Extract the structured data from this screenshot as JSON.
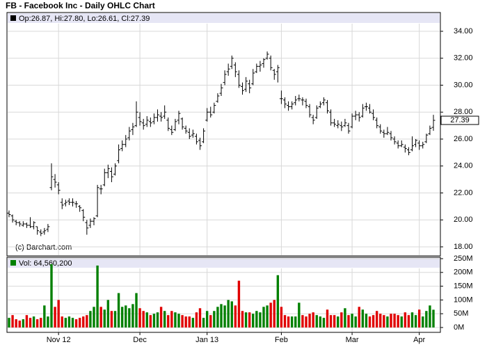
{
  "chart_data": {
    "type": "ohlc",
    "title": "FB - Facebook Inc - Daily OHLC Chart",
    "legend_label": "Op:26.87, Hi:27.80, Lo:26.61, Cl:27.39",
    "copyright": "(c) Barchart.com",
    "last_price_label": "27.39",
    "bar_color": "#000000",
    "up_color": "#008000",
    "down_color": "#e00000",
    "grid": true,
    "categories": [
      null,
      null,
      null,
      null,
      null,
      null,
      null,
      null,
      null,
      null,
      null,
      null,
      null,
      null,
      "Nov 12",
      null,
      null,
      null,
      null,
      null,
      null,
      null,
      null,
      null,
      null,
      null,
      null,
      null,
      null,
      null,
      null,
      null,
      null,
      null,
      null,
      null,
      null,
      "Dec",
      null,
      null,
      null,
      null,
      null,
      null,
      null,
      null,
      null,
      null,
      null,
      null,
      null,
      null,
      null,
      null,
      null,
      null,
      "Jan 13",
      null,
      null,
      null,
      null,
      null,
      null,
      null,
      null,
      null,
      null,
      null,
      null,
      null,
      null,
      null,
      null,
      null,
      null,
      null,
      null,
      "Feb",
      null,
      null,
      null,
      null,
      null,
      null,
      null,
      null,
      null,
      null,
      null,
      null,
      null,
      null,
      null,
      null,
      null,
      null,
      null,
      "Mar",
      null,
      null,
      null,
      null,
      null,
      null,
      null,
      null,
      null,
      null,
      null,
      null,
      null,
      null,
      null,
      null,
      null,
      null,
      "Apr",
      null,
      null,
      null,
      null
    ],
    "ohlc": [
      [
        20.5,
        20.7,
        20.2,
        20.4
      ],
      [
        20.3,
        20.4,
        19.8,
        20.0
      ],
      [
        19.9,
        20.0,
        19.6,
        19.8
      ],
      [
        19.8,
        19.9,
        19.5,
        19.7
      ],
      [
        19.6,
        19.9,
        19.5,
        19.7
      ],
      [
        19.7,
        19.8,
        19.4,
        19.6
      ],
      [
        19.6,
        20.2,
        19.4,
        19.5
      ],
      [
        19.5,
        19.9,
        19.3,
        19.8
      ],
      [
        19.5,
        19.5,
        18.9,
        19.2
      ],
      [
        19.1,
        19.3,
        18.8,
        19.0
      ],
      [
        19.1,
        19.4,
        18.9,
        19.2
      ],
      [
        19.3,
        19.7,
        19.1,
        19.5
      ],
      [
        22.4,
        24.2,
        22.2,
        23.2
      ],
      [
        23.0,
        23.4,
        22.4,
        22.8
      ],
      [
        22.6,
        22.8,
        21.9,
        22.2
      ],
      [
        21.3,
        21.6,
        20.8,
        21.1
      ],
      [
        21.2,
        21.5,
        21.0,
        21.3
      ],
      [
        21.4,
        21.6,
        21.1,
        21.3
      ],
      [
        21.3,
        21.6,
        21.0,
        21.3
      ],
      [
        21.2,
        21.4,
        20.9,
        21.2
      ],
      [
        21.0,
        21.1,
        20.6,
        20.9
      ],
      [
        20.7,
        20.8,
        19.9,
        20.2
      ],
      [
        19.8,
        20.0,
        18.9,
        19.4
      ],
      [
        19.6,
        20.1,
        19.4,
        19.9
      ],
      [
        19.9,
        20.2,
        19.6,
        20.1
      ],
      [
        20.3,
        22.6,
        20.2,
        22.4
      ],
      [
        22.3,
        22.6,
        21.9,
        22.3
      ],
      [
        22.6,
        23.8,
        22.5,
        23.5
      ],
      [
        23.5,
        24.1,
        23.1,
        23.8
      ],
      [
        23.6,
        23.9,
        22.8,
        23.2
      ],
      [
        23.4,
        24.2,
        23.3,
        24.0
      ],
      [
        24.4,
        25.6,
        24.2,
        25.2
      ],
      [
        25.3,
        25.9,
        25.1,
        25.6
      ],
      [
        25.6,
        26.3,
        25.4,
        26.0
      ],
      [
        26.1,
        26.9,
        25.9,
        26.6
      ],
      [
        26.7,
        27.2,
        26.3,
        26.9
      ],
      [
        27.0,
        28.8,
        26.9,
        28.0
      ],
      [
        27.6,
        28.0,
        27.0,
        27.3
      ],
      [
        27.2,
        27.5,
        26.7,
        27.0
      ],
      [
        27.1,
        27.7,
        26.9,
        27.4
      ],
      [
        27.3,
        27.6,
        26.9,
        27.2
      ],
      [
        27.3,
        27.9,
        27.1,
        27.6
      ],
      [
        27.6,
        28.2,
        27.3,
        27.8
      ],
      [
        27.7,
        28.0,
        27.3,
        27.6
      ],
      [
        27.7,
        28.5,
        27.5,
        28.0
      ],
      [
        27.4,
        27.6,
        26.6,
        26.8
      ],
      [
        26.7,
        27.0,
        26.3,
        26.5
      ],
      [
        26.7,
        27.5,
        26.6,
        27.3
      ],
      [
        27.4,
        28.1,
        27.1,
        27.9
      ],
      [
        27.5,
        27.6,
        26.7,
        26.9
      ],
      [
        26.8,
        27.0,
        26.4,
        26.6
      ],
      [
        26.5,
        26.8,
        26.0,
        26.2
      ],
      [
        26.3,
        26.7,
        26.1,
        26.4
      ],
      [
        26.2,
        26.4,
        25.6,
        25.8
      ],
      [
        25.9,
        26.1,
        25.2,
        25.5
      ],
      [
        25.8,
        26.8,
        25.7,
        26.6
      ],
      [
        27.4,
        28.3,
        27.3,
        28.0
      ],
      [
        28.0,
        28.4,
        27.6,
        27.8
      ],
      [
        28.0,
        28.7,
        27.9,
        28.5
      ],
      [
        28.8,
        29.4,
        28.7,
        29.2
      ],
      [
        29.4,
        30.1,
        29.2,
        29.8
      ],
      [
        30.2,
        31.1,
        30.0,
        30.8
      ],
      [
        31.0,
        31.6,
        30.7,
        31.2
      ],
      [
        31.4,
        32.2,
        31.2,
        32.0
      ],
      [
        31.5,
        31.7,
        30.6,
        31.0
      ],
      [
        30.8,
        31.1,
        29.8,
        30.0
      ],
      [
        29.9,
        30.2,
        29.3,
        29.6
      ],
      [
        29.7,
        30.6,
        29.5,
        30.3
      ],
      [
        30.1,
        30.4,
        29.4,
        29.8
      ],
      [
        30.1,
        31.2,
        30.0,
        30.9
      ],
      [
        31.0,
        31.6,
        30.9,
        31.4
      ],
      [
        31.4,
        31.8,
        31.0,
        31.5
      ],
      [
        31.6,
        32.0,
        31.3,
        31.9
      ],
      [
        32.0,
        32.5,
        31.9,
        32.3
      ],
      [
        32.0,
        32.2,
        31.1,
        31.3
      ],
      [
        31.1,
        31.2,
        30.4,
        30.8
      ],
      [
        31.0,
        31.5,
        30.2,
        31.3
      ],
      [
        29.0,
        29.6,
        28.6,
        29.0
      ],
      [
        28.9,
        29.1,
        28.3,
        28.6
      ],
      [
        28.5,
        28.8,
        28.1,
        28.4
      ],
      [
        28.4,
        28.8,
        28.2,
        28.6
      ],
      [
        28.7,
        29.2,
        28.5,
        28.9
      ],
      [
        29.0,
        29.3,
        28.8,
        29.0
      ],
      [
        28.9,
        29.1,
        28.5,
        28.9
      ],
      [
        28.8,
        29.0,
        28.3,
        28.5
      ],
      [
        28.4,
        28.6,
        27.6,
        27.8
      ],
      [
        27.6,
        27.8,
        27.1,
        27.4
      ],
      [
        27.6,
        28.5,
        27.5,
        28.3
      ],
      [
        28.4,
        28.8,
        28.3,
        28.6
      ],
      [
        28.7,
        29.1,
        28.5,
        28.9
      ],
      [
        28.7,
        28.9,
        27.9,
        28.1
      ],
      [
        28.0,
        28.2,
        27.0,
        27.2
      ],
      [
        27.2,
        27.5,
        26.9,
        27.1
      ],
      [
        27.0,
        27.4,
        26.8,
        27.1
      ],
      [
        27.0,
        27.3,
        26.6,
        26.9
      ],
      [
        27.0,
        27.5,
        26.9,
        27.2
      ],
      [
        27.0,
        27.2,
        26.4,
        26.6
      ],
      [
        26.9,
        27.9,
        26.8,
        27.7
      ],
      [
        27.7,
        28.1,
        27.4,
        27.8
      ],
      [
        27.8,
        28.0,
        27.3,
        27.6
      ],
      [
        27.7,
        28.6,
        27.6,
        28.3
      ],
      [
        28.4,
        28.7,
        28.1,
        28.4
      ],
      [
        28.3,
        28.6,
        27.9,
        28.0
      ],
      [
        27.9,
        28.2,
        27.4,
        27.6
      ],
      [
        27.4,
        27.6,
        26.8,
        27.0
      ],
      [
        26.9,
        27.1,
        26.4,
        26.6
      ],
      [
        26.5,
        26.7,
        26.1,
        26.4
      ],
      [
        26.4,
        26.9,
        26.3,
        26.5
      ],
      [
        26.4,
        26.6,
        25.9,
        26.1
      ],
      [
        26.0,
        26.2,
        25.6,
        25.8
      ],
      [
        25.7,
        25.9,
        25.3,
        25.5
      ],
      [
        25.5,
        25.9,
        25.4,
        25.6
      ],
      [
        25.4,
        25.6,
        25.0,
        25.3
      ],
      [
        25.2,
        25.4,
        24.8,
        25.0
      ],
      [
        25.2,
        26.2,
        25.1,
        25.5
      ],
      [
        25.6,
        26.0,
        25.4,
        25.9
      ],
      [
        25.7,
        25.9,
        25.2,
        25.5
      ],
      [
        25.5,
        25.8,
        25.3,
        25.6
      ],
      [
        25.8,
        26.4,
        25.7,
        26.3
      ],
      [
        26.4,
        27.0,
        26.3,
        26.8
      ],
      [
        26.87,
        27.8,
        26.61,
        27.39
      ]
    ],
    "ylim": [
      18,
      34
    ],
    "yticks": [
      {
        "value": 18,
        "label": "18.00"
      },
      {
        "value": 20,
        "label": "20.00"
      },
      {
        "value": 22,
        "label": "22.00"
      },
      {
        "value": 24,
        "label": "24.00"
      },
      {
        "value": 26,
        "label": "26.00"
      },
      {
        "value": 28,
        "label": "28.00"
      },
      {
        "value": 30,
        "label": "30.00"
      },
      {
        "value": 32,
        "label": "32.00"
      },
      {
        "value": 34,
        "label": "34.00"
      }
    ],
    "volume": {
      "label": "Vol: 64,560,200",
      "values": [
        35,
        45,
        30,
        25,
        30,
        45,
        35,
        40,
        30,
        35,
        80,
        40,
        230,
        75,
        100,
        40,
        35,
        40,
        35,
        30,
        35,
        40,
        45,
        60,
        75,
        225,
        75,
        65,
        100,
        60,
        60,
        125,
        75,
        80,
        70,
        85,
        125,
        70,
        60,
        55,
        45,
        50,
        55,
        75,
        60,
        45,
        60,
        55,
        50,
        45,
        40,
        40,
        35,
        55,
        70,
        35,
        60,
        45,
        60,
        75,
        85,
        80,
        100,
        95,
        80,
        170,
        60,
        55,
        55,
        50,
        60,
        55,
        75,
        80,
        90,
        100,
        190,
        75,
        45,
        40,
        40,
        40,
        90,
        45,
        40,
        50,
        55,
        45,
        40,
        35,
        65,
        45,
        45,
        40,
        55,
        70,
        45,
        50,
        40,
        75,
        65,
        50,
        40,
        45,
        60,
        50,
        45,
        40,
        50,
        50,
        45,
        40,
        55,
        45,
        55,
        45,
        65,
        40,
        60,
        80,
        64.56
      ],
      "ylim": [
        0,
        250
      ],
      "yticks": [
        {
          "value": 0,
          "label": "0M"
        },
        {
          "value": 50,
          "label": "50M"
        },
        {
          "value": 100,
          "label": "100M"
        },
        {
          "value": 150,
          "label": "150M"
        },
        {
          "value": 200,
          "label": "200M"
        },
        {
          "value": 250,
          "label": "250M"
        }
      ]
    }
  }
}
